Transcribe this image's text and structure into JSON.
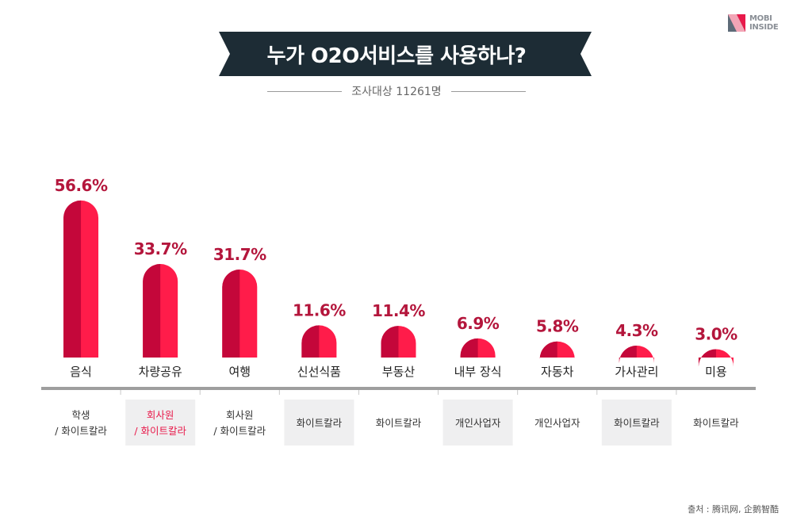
{
  "logo": {
    "line1": "MOBI",
    "line2": "INSIDE"
  },
  "header": {
    "title": "누가 O2O서비스를 사용하나?",
    "subtitle": "조사대상 11261명"
  },
  "colors": {
    "banner": "#1d2c35",
    "bar_dark": "#c4073a",
    "bar_light": "#ff1c4a",
    "value_text": "#b4163c",
    "highlight_text": "#e8194a",
    "axis": "#9e9e9e",
    "box_bg": "#efeff0"
  },
  "chart_data": {
    "type": "bar",
    "categories": [
      "음식",
      "차량공유",
      "여행",
      "신선식품",
      "부동산",
      "내부 장식",
      "자동차",
      "가사관리",
      "미용"
    ],
    "values": [
      56.6,
      33.7,
      31.7,
      11.6,
      11.4,
      6.9,
      5.8,
      4.3,
      3.0
    ],
    "value_labels": [
      "56.6%",
      "33.7%",
      "31.7%",
      "11.6%",
      "11.4%",
      "6.9%",
      "5.8%",
      "4.3%",
      "3.0%"
    ],
    "users": [
      {
        "lines": [
          "학생",
          "/ 화이트칼라"
        ],
        "boxed": false,
        "highlight": false
      },
      {
        "lines": [
          "회사원",
          "/ 화이트칼라"
        ],
        "boxed": true,
        "highlight": true
      },
      {
        "lines": [
          "회사원",
          "/ 화이트칼라"
        ],
        "boxed": false,
        "highlight": false
      },
      {
        "lines": [
          "화이트칼라"
        ],
        "boxed": true,
        "highlight": false
      },
      {
        "lines": [
          "화이트칼라"
        ],
        "boxed": false,
        "highlight": false
      },
      {
        "lines": [
          "개인사업자"
        ],
        "boxed": true,
        "highlight": false
      },
      {
        "lines": [
          "개인사업자"
        ],
        "boxed": false,
        "highlight": false
      },
      {
        "lines": [
          "화이트칼라"
        ],
        "boxed": true,
        "highlight": false
      },
      {
        "lines": [
          "화이트칼라"
        ],
        "boxed": false,
        "highlight": false
      }
    ],
    "ylim": [
      0,
      60
    ],
    "grid": false,
    "legend": "none"
  },
  "source": "출처 : 腾讯网, 企鹅智酷"
}
